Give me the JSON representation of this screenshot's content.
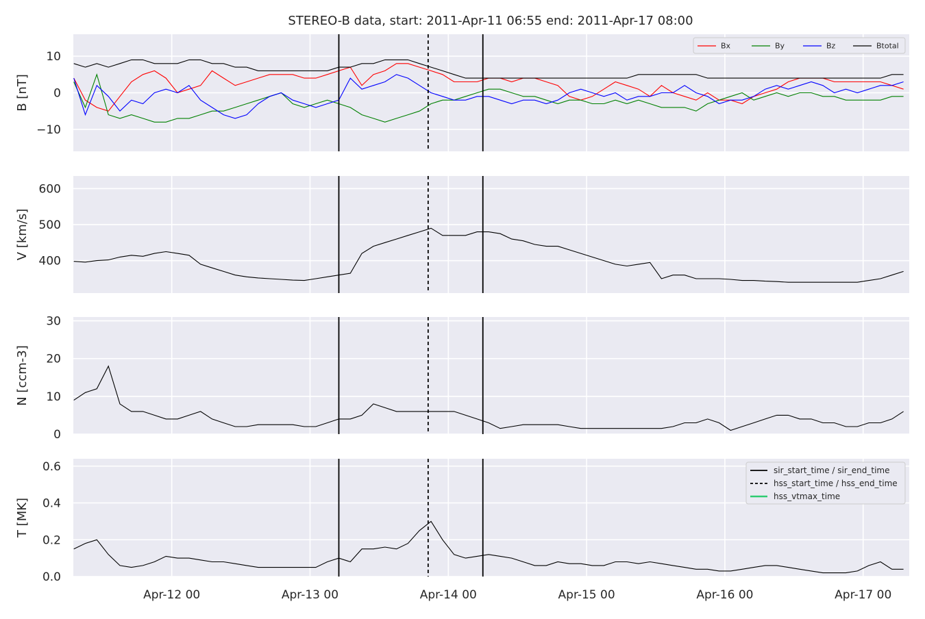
{
  "title": "STEREO-B data, start: 2011-Apr-11 06:55  end: 2011-Apr-17 08:00",
  "x_axis": {
    "range_hours_from_apr11_00": [
      6.9167,
      152.0
    ],
    "tick_labels": [
      "Apr-12 00",
      "Apr-13 00",
      "Apr-14 00",
      "Apr-15 00",
      "Apr-16 00",
      "Apr-17 00"
    ],
    "tick_hours": [
      24,
      48,
      72,
      96,
      120,
      144
    ]
  },
  "events": [
    {
      "name": "sir_start_time",
      "time": "2011-Apr-13 05:00",
      "hour": 53.0,
      "style": "solid"
    },
    {
      "name": "hss_start_time",
      "time": "2011-Apr-13 20:30",
      "hour": 68.5,
      "style": "dashed"
    },
    {
      "name": "sir_end_time",
      "time": "2011-Apr-14 06:00",
      "hour": 78.0,
      "style": "solid"
    }
  ],
  "legend_bottom": {
    "items": [
      {
        "label": "sir_start_time / sir_end_time",
        "style": "solid",
        "color": "#000000"
      },
      {
        "label": "hss_start_time / hss_end_time",
        "style": "dashed",
        "color": "#000000"
      },
      {
        "label": "hss_vtmax_time",
        "style": "solid",
        "color": "#2ecc71"
      }
    ]
  },
  "chart_data": [
    {
      "type": "line",
      "ylabel": "B [nT]",
      "ylim": [
        -16,
        16
      ],
      "yticks": [
        -10,
        0,
        10
      ],
      "ytick_labels": [
        "−10",
        "0",
        "10"
      ],
      "legend_position": "top-right",
      "series": [
        {
          "name": "Bx",
          "color": "#ff0000",
          "x": [
            7,
            9,
            11,
            13,
            15,
            17,
            19,
            21,
            23,
            25,
            27,
            29,
            31,
            33,
            35,
            37,
            39,
            41,
            43,
            45,
            47,
            49,
            51,
            53,
            55,
            57,
            59,
            61,
            63,
            65,
            67,
            69,
            71,
            73,
            75,
            77,
            79,
            81,
            83,
            85,
            87,
            89,
            91,
            93,
            95,
            97,
            99,
            101,
            103,
            105,
            107,
            109,
            111,
            113,
            115,
            117,
            119,
            121,
            123,
            125,
            127,
            129,
            131,
            133,
            135,
            137,
            139,
            141,
            143,
            145,
            147,
            149,
            151
          ],
          "y": [
            4,
            -2,
            -4,
            -5,
            -1,
            3,
            5,
            6,
            4,
            0,
            1,
            2,
            6,
            4,
            2,
            3,
            4,
            5,
            5,
            5,
            4,
            4,
            5,
            6,
            7,
            2,
            5,
            6,
            8,
            8,
            7,
            6,
            5,
            3,
            3,
            3,
            4,
            4,
            3,
            4,
            4,
            3,
            2,
            -1,
            -2,
            -1,
            1,
            3,
            2,
            1,
            -1,
            2,
            0,
            -1,
            -2,
            0,
            -2,
            -2,
            -3,
            -1,
            0,
            1,
            3,
            4,
            4,
            4,
            3,
            3,
            3,
            3,
            3,
            2,
            1
          ]
        },
        {
          "name": "By",
          "color": "#008000",
          "x": [
            7,
            9,
            11,
            13,
            15,
            17,
            19,
            21,
            23,
            25,
            27,
            29,
            31,
            33,
            35,
            37,
            39,
            41,
            43,
            45,
            47,
            49,
            51,
            53,
            55,
            57,
            59,
            61,
            63,
            65,
            67,
            69,
            71,
            73,
            75,
            77,
            79,
            81,
            83,
            85,
            87,
            89,
            91,
            93,
            95,
            97,
            99,
            101,
            103,
            105,
            107,
            109,
            111,
            113,
            115,
            117,
            119,
            121,
            123,
            125,
            127,
            129,
            131,
            133,
            135,
            137,
            139,
            141,
            143,
            145,
            147,
            149,
            151
          ],
          "y": [
            3,
            -4,
            5,
            -6,
            -7,
            -6,
            -7,
            -8,
            -8,
            -7,
            -7,
            -6,
            -5,
            -5,
            -4,
            -3,
            -2,
            -1,
            0,
            -3,
            -4,
            -3,
            -2,
            -3,
            -4,
            -6,
            -7,
            -8,
            -7,
            -6,
            -5,
            -3,
            -2,
            -2,
            -1,
            0,
            1,
            1,
            0,
            -1,
            -1,
            -2,
            -3,
            -2,
            -2,
            -3,
            -3,
            -2,
            -3,
            -2,
            -3,
            -4,
            -4,
            -4,
            -5,
            -3,
            -2,
            -1,
            0,
            -2,
            -1,
            0,
            -1,
            0,
            0,
            -1,
            -1,
            -2,
            -2,
            -2,
            -2,
            -1,
            -1
          ]
        },
        {
          "name": "Bz",
          "color": "#0000ff",
          "x": [
            7,
            9,
            11,
            13,
            15,
            17,
            19,
            21,
            23,
            25,
            27,
            29,
            31,
            33,
            35,
            37,
            39,
            41,
            43,
            45,
            47,
            49,
            51,
            53,
            55,
            57,
            59,
            61,
            63,
            65,
            67,
            69,
            71,
            73,
            75,
            77,
            79,
            81,
            83,
            85,
            87,
            89,
            91,
            93,
            95,
            97,
            99,
            101,
            103,
            105,
            107,
            109,
            111,
            113,
            115,
            117,
            119,
            121,
            123,
            125,
            127,
            129,
            131,
            133,
            135,
            137,
            139,
            141,
            143,
            145,
            147,
            149,
            151
          ],
          "y": [
            4,
            -6,
            2,
            -1,
            -5,
            -2,
            -3,
            0,
            1,
            0,
            2,
            -2,
            -4,
            -6,
            -7,
            -6,
            -3,
            -1,
            0,
            -2,
            -3,
            -4,
            -3,
            -2,
            4,
            1,
            2,
            3,
            5,
            4,
            2,
            0,
            -1,
            -2,
            -2,
            -1,
            -1,
            -2,
            -3,
            -2,
            -2,
            -3,
            -2,
            0,
            1,
            0,
            -1,
            0,
            -2,
            -1,
            -1,
            0,
            0,
            2,
            0,
            -1,
            -3,
            -2,
            -2,
            -1,
            1,
            2,
            1,
            2,
            3,
            2,
            0,
            1,
            0,
            1,
            2,
            2,
            3
          ]
        },
        {
          "name": "Btotal",
          "color": "#000000",
          "x": [
            7,
            9,
            11,
            13,
            15,
            17,
            19,
            21,
            23,
            25,
            27,
            29,
            31,
            33,
            35,
            37,
            39,
            41,
            43,
            45,
            47,
            49,
            51,
            53,
            55,
            57,
            59,
            61,
            63,
            65,
            67,
            69,
            71,
            73,
            75,
            77,
            79,
            81,
            83,
            85,
            87,
            89,
            91,
            93,
            95,
            97,
            99,
            101,
            103,
            105,
            107,
            109,
            111,
            113,
            115,
            117,
            119,
            121,
            123,
            125,
            127,
            129,
            131,
            133,
            135,
            137,
            139,
            141,
            143,
            145,
            147,
            149,
            151
          ],
          "y": [
            8,
            7,
            8,
            7,
            8,
            9,
            9,
            8,
            8,
            8,
            9,
            9,
            8,
            8,
            7,
            7,
            6,
            6,
            6,
            6,
            6,
            6,
            6,
            7,
            7,
            8,
            8,
            9,
            9,
            9,
            8,
            7,
            6,
            5,
            4,
            4,
            4,
            4,
            4,
            4,
            4,
            4,
            4,
            4,
            4,
            4,
            4,
            4,
            4,
            5,
            5,
            5,
            5,
            5,
            5,
            4,
            4,
            4,
            4,
            4,
            4,
            4,
            4,
            4,
            4,
            4,
            4,
            4,
            4,
            4,
            4,
            5,
            5
          ]
        }
      ]
    },
    {
      "type": "line",
      "ylabel": "V [km/s]",
      "ylim": [
        310,
        635
      ],
      "yticks": [
        400,
        500,
        600
      ],
      "ytick_labels": [
        "400",
        "500",
        "600"
      ],
      "series": [
        {
          "name": "V",
          "color": "#000000",
          "x": [
            7,
            9,
            11,
            13,
            15,
            17,
            19,
            21,
            23,
            25,
            27,
            29,
            31,
            33,
            35,
            37,
            39,
            41,
            43,
            45,
            47,
            49,
            51,
            53,
            55,
            57,
            59,
            61,
            63,
            65,
            67,
            69,
            71,
            73,
            75,
            77,
            79,
            81,
            83,
            85,
            87,
            89,
            91,
            93,
            95,
            97,
            99,
            101,
            103,
            105,
            107,
            109,
            111,
            113,
            115,
            117,
            119,
            121,
            123,
            125,
            127,
            129,
            131,
            133,
            135,
            137,
            139,
            141,
            143,
            145,
            147,
            149,
            151
          ],
          "y": [
            398,
            396,
            400,
            402,
            410,
            415,
            412,
            420,
            425,
            420,
            415,
            390,
            380,
            370,
            360,
            355,
            352,
            350,
            348,
            346,
            345,
            350,
            355,
            360,
            365,
            420,
            440,
            450,
            460,
            470,
            480,
            490,
            470,
            470,
            470,
            480,
            480,
            475,
            460,
            455,
            445,
            440,
            440,
            430,
            420,
            410,
            400,
            390,
            385,
            390,
            395,
            350,
            360,
            360,
            350,
            350,
            350,
            348,
            345,
            345,
            343,
            342,
            340,
            340,
            340,
            340,
            340,
            340,
            340,
            345,
            350,
            360,
            370
          ]
        }
      ]
    },
    {
      "type": "line",
      "ylabel": "N [ccm-3]",
      "ylim": [
        0,
        31
      ],
      "yticks": [
        0,
        10,
        20,
        30
      ],
      "ytick_labels": [
        "0",
        "10",
        "20",
        "30"
      ],
      "series": [
        {
          "name": "N",
          "color": "#000000",
          "x": [
            7,
            9,
            11,
            13,
            15,
            17,
            19,
            21,
            23,
            25,
            27,
            29,
            31,
            33,
            35,
            37,
            39,
            41,
            43,
            45,
            47,
            49,
            51,
            53,
            55,
            57,
            59,
            61,
            63,
            65,
            67,
            69,
            71,
            73,
            75,
            77,
            79,
            81,
            83,
            85,
            87,
            89,
            91,
            93,
            95,
            97,
            99,
            101,
            103,
            105,
            107,
            109,
            111,
            113,
            115,
            117,
            119,
            121,
            123,
            125,
            127,
            129,
            131,
            133,
            135,
            137,
            139,
            141,
            143,
            145,
            147,
            149,
            151
          ],
          "y": [
            9,
            11,
            12,
            18,
            8,
            6,
            6,
            5,
            4,
            4,
            5,
            6,
            4,
            3,
            2,
            2,
            2.5,
            2.5,
            2.5,
            2.5,
            2,
            2,
            3,
            4,
            4,
            5,
            8,
            7,
            6,
            6,
            6,
            6,
            6,
            6,
            5,
            4,
            3,
            1.5,
            2,
            2.5,
            2.5,
            2.5,
            2.5,
            2,
            1.5,
            1.5,
            1.5,
            1.5,
            1.5,
            1.5,
            1.5,
            1.5,
            2,
            3,
            3,
            4,
            3,
            1,
            2,
            3,
            4,
            5,
            5,
            4,
            4,
            3,
            3,
            2,
            2,
            3,
            3,
            4,
            6
          ]
        }
      ]
    },
    {
      "type": "line",
      "ylabel": "T [MK]",
      "ylim": [
        0,
        0.64
      ],
      "yticks": [
        0.0,
        0.2,
        0.4,
        0.6
      ],
      "ytick_labels": [
        "0.0",
        "0.2",
        "0.4",
        "0.6"
      ],
      "legend_position": "top-right",
      "series": [
        {
          "name": "T",
          "color": "#000000",
          "x": [
            7,
            9,
            11,
            13,
            15,
            17,
            19,
            21,
            23,
            25,
            27,
            29,
            31,
            33,
            35,
            37,
            39,
            41,
            43,
            45,
            47,
            49,
            51,
            53,
            55,
            57,
            59,
            61,
            63,
            65,
            67,
            69,
            71,
            73,
            75,
            77,
            79,
            81,
            83,
            85,
            87,
            89,
            91,
            93,
            95,
            97,
            99,
            101,
            103,
            105,
            107,
            109,
            111,
            113,
            115,
            117,
            119,
            121,
            123,
            125,
            127,
            129,
            131,
            133,
            135,
            137,
            139,
            141,
            143,
            145,
            147,
            149,
            151
          ],
          "y": [
            0.15,
            0.18,
            0.2,
            0.12,
            0.06,
            0.05,
            0.06,
            0.08,
            0.11,
            0.1,
            0.1,
            0.09,
            0.08,
            0.08,
            0.07,
            0.06,
            0.05,
            0.05,
            0.05,
            0.05,
            0.05,
            0.05,
            0.08,
            0.1,
            0.08,
            0.15,
            0.15,
            0.16,
            0.15,
            0.18,
            0.25,
            0.3,
            0.2,
            0.12,
            0.1,
            0.11,
            0.12,
            0.11,
            0.1,
            0.08,
            0.06,
            0.06,
            0.08,
            0.07,
            0.07,
            0.06,
            0.06,
            0.08,
            0.08,
            0.07,
            0.08,
            0.07,
            0.06,
            0.05,
            0.04,
            0.04,
            0.03,
            0.03,
            0.04,
            0.05,
            0.06,
            0.06,
            0.05,
            0.04,
            0.03,
            0.02,
            0.02,
            0.02,
            0.03,
            0.06,
            0.08,
            0.04,
            0.04
          ]
        }
      ]
    }
  ]
}
